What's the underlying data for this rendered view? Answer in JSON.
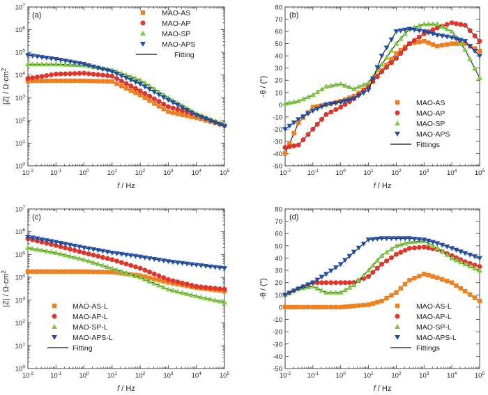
{
  "colors": {
    "orange": "#f07f1e",
    "red": "#e0352b",
    "green": "#7ccb3c",
    "blue": "#1f4fa8",
    "fit": "#111111"
  },
  "chart_data": [
    {
      "id": "a",
      "type": "scatter",
      "panel_label": "(a)",
      "xlabel_var": "f",
      "xlabel_unit": " / Hz",
      "ylabel_text": "|Z| / Ω·cm",
      "ylabel_sup": "2",
      "xscale": "log",
      "yscale": "log",
      "xlim_exp": [
        -2,
        5
      ],
      "ylim_exp": [
        0,
        7
      ],
      "x_tick_exp": [
        -2,
        -1,
        0,
        1,
        2,
        3,
        4,
        5
      ],
      "y_tick_exp": [
        0,
        1,
        2,
        3,
        4,
        5,
        6,
        7
      ],
      "tick_base": "10",
      "legend_position": "top-right",
      "fit_label": "Fitting",
      "series": [
        {
          "name": "MAO-AS",
          "color_key": "orange",
          "marker": "square",
          "x": [
            0.01,
            0.1,
            1,
            10,
            100,
            1000,
            10000,
            100000
          ],
          "y": [
            5500,
            5600,
            5600,
            5200,
            1300,
            240,
            130,
            60
          ]
        },
        {
          "name": "MAO-AP",
          "color_key": "red",
          "marker": "circle",
          "x": [
            0.01,
            0.1,
            1,
            10,
            100,
            1000,
            10000,
            100000
          ],
          "y": [
            7000,
            11000,
            12000,
            9000,
            2000,
            400,
            180,
            60
          ]
        },
        {
          "name": "MAO-SP",
          "color_key": "green",
          "marker": "triangle-up",
          "x": [
            0.01,
            0.1,
            1,
            10,
            100,
            1000,
            10000,
            100000
          ],
          "y": [
            30000,
            30000,
            27000,
            17000,
            6000,
            1000,
            200,
            65
          ]
        },
        {
          "name": "MAO-APS",
          "color_key": "blue",
          "marker": "triangle-down",
          "x": [
            0.01,
            0.1,
            1,
            10,
            100,
            1000,
            10000,
            100000
          ],
          "y": [
            75000,
            50000,
            30000,
            14000,
            4000,
            800,
            170,
            55
          ]
        }
      ]
    },
    {
      "id": "b",
      "type": "scatter",
      "panel_label": "(b)",
      "xlabel_var": "f",
      "xlabel_unit": " / Hz",
      "ylabel_text": "-θ / (°)",
      "xscale": "log",
      "yscale": "linear",
      "xlim_exp": [
        -2,
        5
      ],
      "ylim": [
        -50,
        80
      ],
      "y_ticks": [
        -50,
        -40,
        -30,
        -20,
        -10,
        0,
        10,
        20,
        30,
        40,
        50,
        60,
        70,
        80
      ],
      "x_tick_exp": [
        -2,
        -1,
        0,
        1,
        2,
        3,
        4,
        5
      ],
      "tick_base": "10",
      "legend_position": "lower-right",
      "fit_label": "Fittings",
      "series": [
        {
          "name": "MAO-AS",
          "color_key": "orange",
          "marker": "square",
          "x": [
            0.01,
            0.03,
            0.1,
            0.3,
            1,
            3,
            10,
            30,
            100,
            300,
            1000,
            3000,
            10000,
            30000,
            100000
          ],
          "y": [
            -40,
            -15,
            -2,
            0,
            3,
            7,
            15,
            28,
            42,
            50,
            52,
            48,
            50,
            50,
            44
          ]
        },
        {
          "name": "MAO-AP",
          "color_key": "red",
          "marker": "circle",
          "x": [
            0.01,
            0.03,
            0.1,
            0.3,
            1,
            3,
            10,
            30,
            100,
            300,
            1000,
            3000,
            10000,
            30000,
            100000
          ],
          "y": [
            -35,
            -33,
            -20,
            -8,
            -2,
            5,
            15,
            27,
            38,
            50,
            58,
            63,
            67,
            65,
            52
          ]
        },
        {
          "name": "MAO-SP",
          "color_key": "green",
          "marker": "triangle-up",
          "x": [
            0.01,
            0.03,
            0.1,
            0.3,
            1,
            3,
            10,
            30,
            100,
            300,
            1000,
            3000,
            10000,
            30000,
            100000
          ],
          "y": [
            1,
            3,
            8,
            15,
            17,
            13,
            18,
            33,
            50,
            62,
            66,
            66,
            60,
            45,
            22
          ]
        },
        {
          "name": "MAO-APS",
          "color_key": "blue",
          "marker": "triangle-down",
          "x": [
            0.01,
            0.03,
            0.1,
            0.3,
            1,
            3,
            10,
            30,
            100,
            300,
            1000,
            3000,
            10000,
            30000,
            100000
          ],
          "y": [
            -20,
            -12,
            -5,
            0,
            2,
            5,
            12,
            40,
            60,
            62,
            60,
            57,
            55,
            52,
            40
          ]
        }
      ]
    },
    {
      "id": "c",
      "type": "scatter",
      "panel_label": "(c)",
      "xlabel_var": "f",
      "xlabel_unit": " / Hz",
      "ylabel_text": "|Z| / Ω·cm",
      "ylabel_sup": "2",
      "xscale": "log",
      "yscale": "log",
      "xlim_exp": [
        -2,
        5
      ],
      "ylim_exp": [
        0,
        7
      ],
      "x_tick_exp": [
        -2,
        -1,
        0,
        1,
        2,
        3,
        4,
        5
      ],
      "y_tick_exp": [
        0,
        1,
        2,
        3,
        4,
        5,
        6,
        7
      ],
      "tick_base": "10",
      "legend_position": "lower-left",
      "fit_label": "Fitting",
      "series": [
        {
          "name": "MAO-AS-L",
          "color_key": "orange",
          "marker": "square",
          "x": [
            0.01,
            0.1,
            1,
            10,
            100,
            1000,
            10000,
            100000
          ],
          "y": [
            18000,
            18000,
            18000,
            17000,
            12000,
            6000,
            3500,
            2500
          ]
        },
        {
          "name": "MAO-AP-L",
          "color_key": "red",
          "marker": "circle",
          "x": [
            0.01,
            0.1,
            1,
            10,
            100,
            1000,
            10000,
            100000
          ],
          "y": [
            500000,
            250000,
            120000,
            60000,
            25000,
            8000,
            4000,
            3000
          ]
        },
        {
          "name": "MAO-SP-L",
          "color_key": "green",
          "marker": "triangle-up",
          "x": [
            0.01,
            0.1,
            1,
            10,
            100,
            1000,
            10000,
            100000
          ],
          "y": [
            200000,
            120000,
            60000,
            25000,
            10000,
            3000,
            1500,
            800
          ]
        },
        {
          "name": "MAO-APS-L",
          "color_key": "blue",
          "marker": "triangle-down",
          "x": [
            0.01,
            0.1,
            1,
            10,
            100,
            1000,
            10000,
            100000
          ],
          "y": [
            600000,
            350000,
            200000,
            120000,
            80000,
            50000,
            35000,
            25000
          ]
        }
      ]
    },
    {
      "id": "d",
      "type": "scatter",
      "panel_label": "(d)",
      "xlabel_var": "f",
      "xlabel_unit": " / Hz",
      "ylabel_text": "-θ / (°)",
      "xscale": "log",
      "yscale": "linear",
      "xlim_exp": [
        -2,
        5
      ],
      "ylim": [
        -50,
        80
      ],
      "y_ticks": [
        -50,
        -40,
        -30,
        -20,
        -10,
        0,
        10,
        20,
        30,
        40,
        50,
        60,
        70,
        80
      ],
      "x_tick_exp": [
        -2,
        -1,
        0,
        1,
        2,
        3,
        4,
        5
      ],
      "tick_base": "10",
      "legend_position": "lower-right",
      "fit_label": "Fittings",
      "series": [
        {
          "name": "MAO-AS-L",
          "color_key": "orange",
          "marker": "square",
          "x": [
            0.01,
            0.03,
            0.1,
            0.3,
            1,
            3,
            10,
            30,
            100,
            300,
            1000,
            3000,
            10000,
            30000,
            100000
          ],
          "y": [
            0,
            0,
            0,
            0,
            0,
            1,
            2,
            5,
            12,
            22,
            27,
            24,
            20,
            13,
            5
          ]
        },
        {
          "name": "MAO-AP-L",
          "color_key": "red",
          "marker": "circle",
          "x": [
            0.01,
            0.03,
            0.1,
            0.3,
            1,
            3,
            10,
            30,
            100,
            300,
            1000,
            3000,
            10000,
            30000,
            100000
          ],
          "y": [
            10,
            15,
            20,
            20,
            20,
            20,
            25,
            35,
            43,
            48,
            49,
            47,
            42,
            37,
            33
          ]
        },
        {
          "name": "MAO-SP-L",
          "color_key": "green",
          "marker": "triangle-up",
          "x": [
            0.01,
            0.03,
            0.1,
            0.3,
            1,
            3,
            10,
            30,
            100,
            300,
            1000,
            3000,
            10000,
            30000,
            100000
          ],
          "y": [
            10,
            15,
            17,
            12,
            12,
            18,
            30,
            42,
            50,
            53,
            54,
            48,
            40,
            35,
            30
          ]
        },
        {
          "name": "MAO-APS-L",
          "color_key": "blue",
          "marker": "triangle-down",
          "x": [
            0.01,
            0.03,
            0.1,
            0.3,
            1,
            3,
            10,
            30,
            100,
            300,
            1000,
            3000,
            10000,
            30000,
            100000
          ],
          "y": [
            10,
            15,
            20,
            27,
            35,
            45,
            55,
            56,
            56,
            56,
            55,
            52,
            48,
            44,
            40
          ]
        }
      ]
    }
  ]
}
